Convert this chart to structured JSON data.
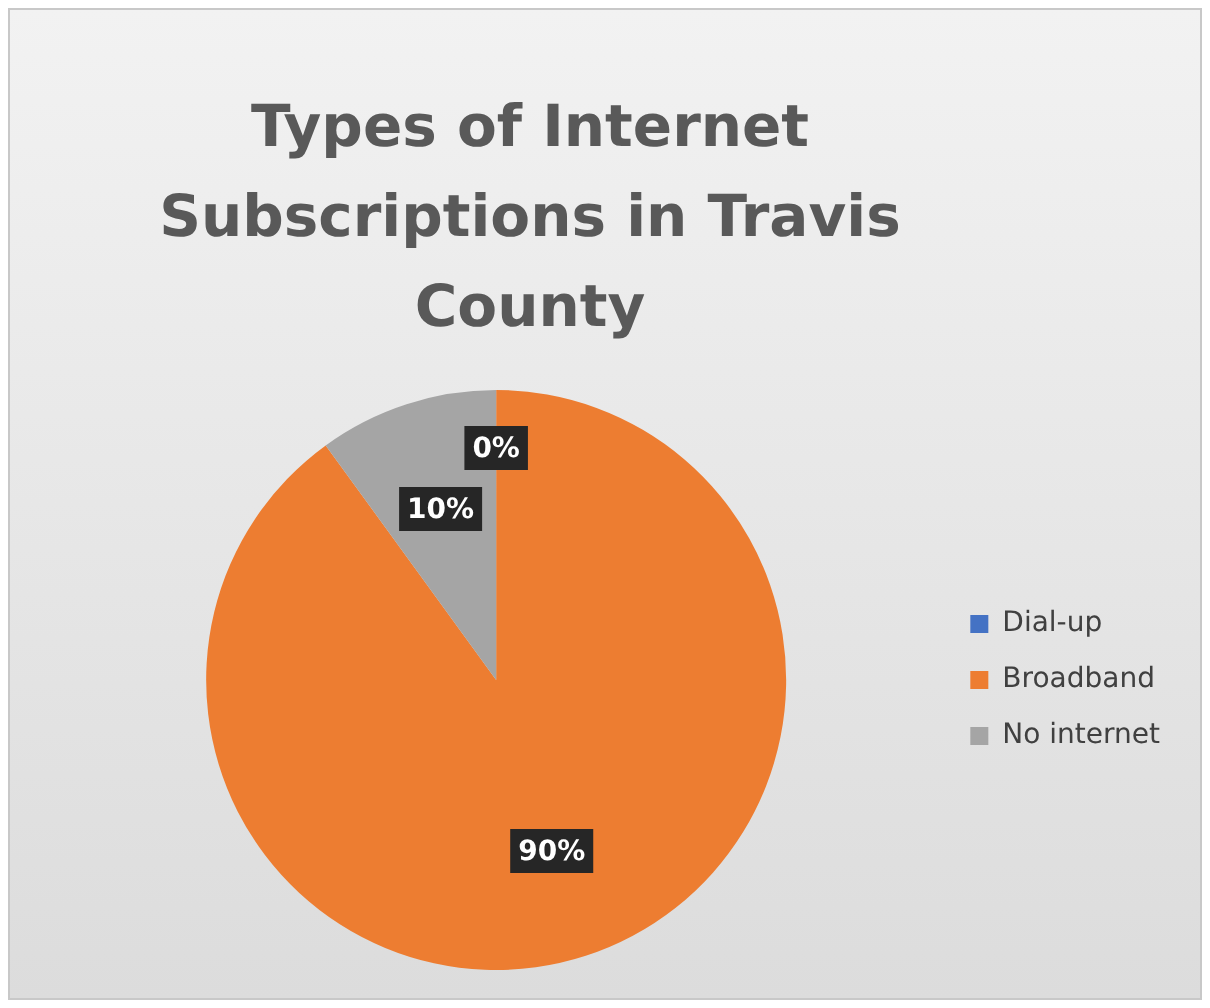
{
  "chart_data": {
    "type": "pie",
    "title": "Types of Internet Subscriptions in Travis County",
    "categories": [
      "Dial-up",
      "Broadband",
      "No internet"
    ],
    "values": [
      0,
      90,
      10
    ],
    "colors": [
      "#4472c4",
      "#ed7d31",
      "#a5a5a5"
    ],
    "value_labels": [
      "0%",
      "90%",
      "10%"
    ],
    "legend": "right"
  }
}
